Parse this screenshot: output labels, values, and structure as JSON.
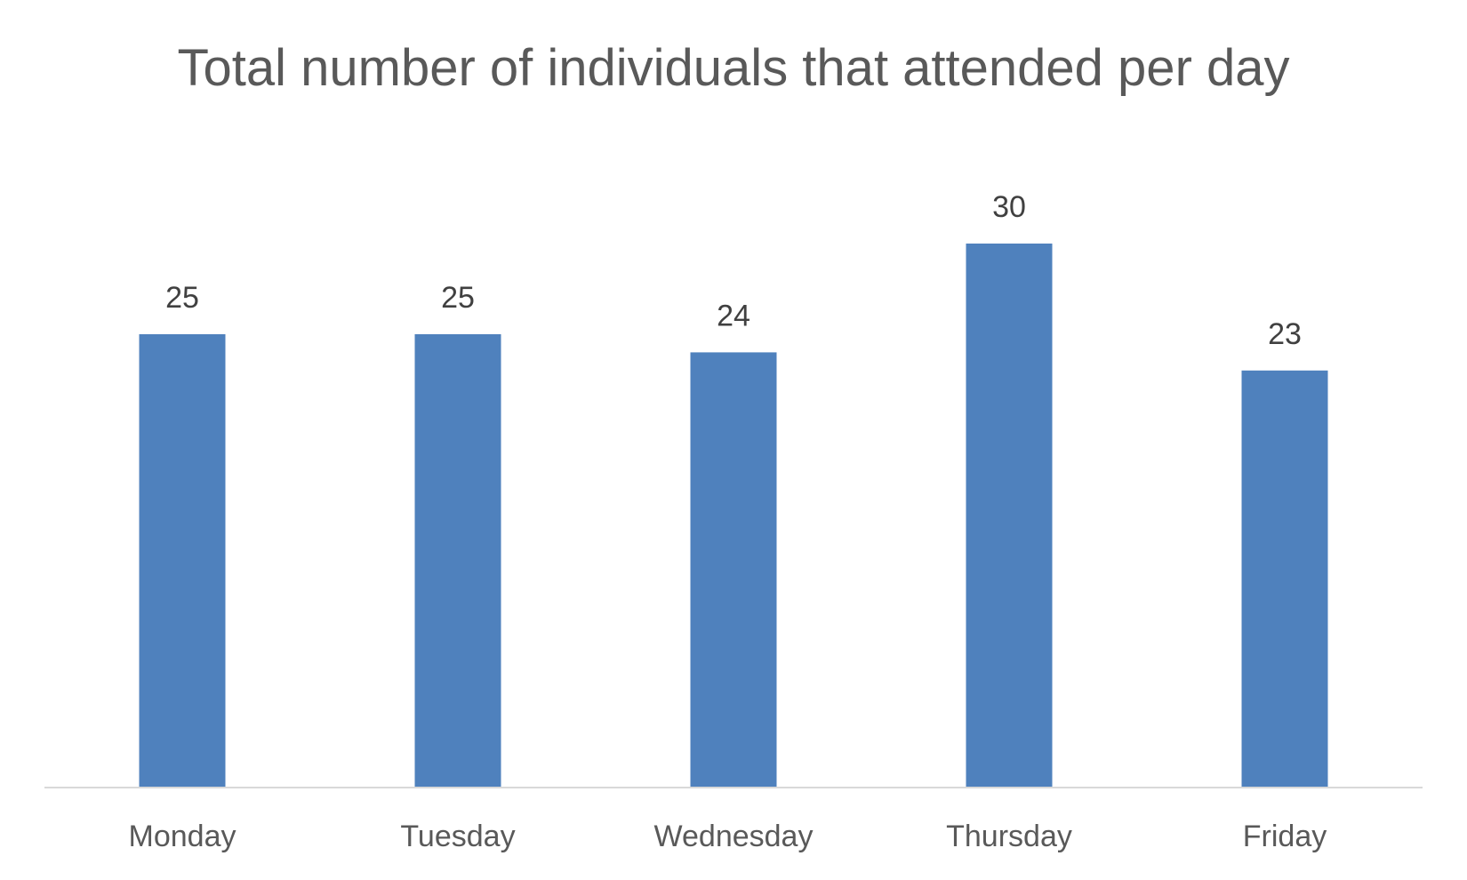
{
  "chart_data": {
    "type": "bar",
    "title": "Total number of individuals that attended per day",
    "categories": [
      "Monday",
      "Tuesday",
      "Wednesday",
      "Thursday",
      "Friday"
    ],
    "series": [
      {
        "values": [
          25,
          25,
          24,
          30,
          23
        ],
        "color": "#4F81BD"
      }
    ],
    "data_labels": [
      "25",
      "25",
      "24",
      "30",
      "23"
    ],
    "ylim": [
      0,
      30
    ],
    "grid": false,
    "legend": "none",
    "axis_color": "#D9D9D9"
  }
}
